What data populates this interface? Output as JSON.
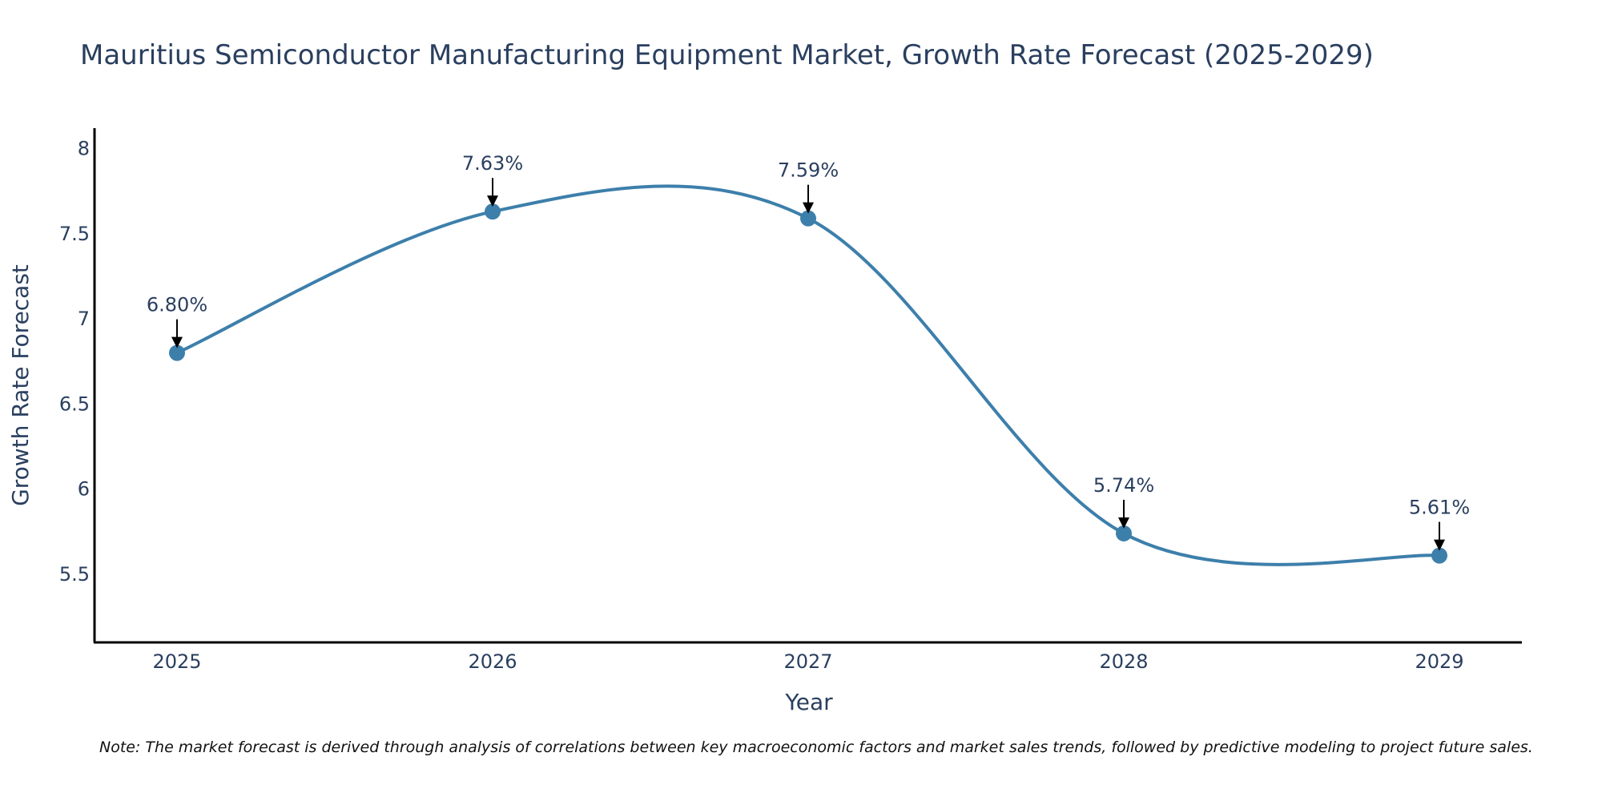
{
  "chart_data": {
    "type": "line",
    "title": "Mauritius Semiconductor Manufacturing Equipment Market, Growth Rate Forecast (2025-2029)",
    "xlabel": "Year",
    "ylabel": "Growth Rate Forecast",
    "categories": [
      "2025",
      "2026",
      "2027",
      "2028",
      "2029"
    ],
    "series": [
      {
        "name": "Growth Rate Forecast",
        "values": [
          6.8,
          7.63,
          7.59,
          5.74,
          5.61
        ],
        "labels": [
          "6.80%",
          "7.63%",
          "7.59%",
          "5.74%",
          "5.61%"
        ]
      }
    ],
    "yticks": [
      "5.5",
      "6",
      "6.5",
      "7",
      "7.5",
      "8"
    ],
    "ylim": [
      5.1,
      8.12
    ],
    "line_shape": "spline",
    "grid": false,
    "line_color": "#3d7fab",
    "text_color": "#2a3f5f",
    "note": "Note: The market forecast is derived through analysis of correlations between key macroeconomic factors and market sales trends, followed by predictive modeling to project future sales."
  }
}
